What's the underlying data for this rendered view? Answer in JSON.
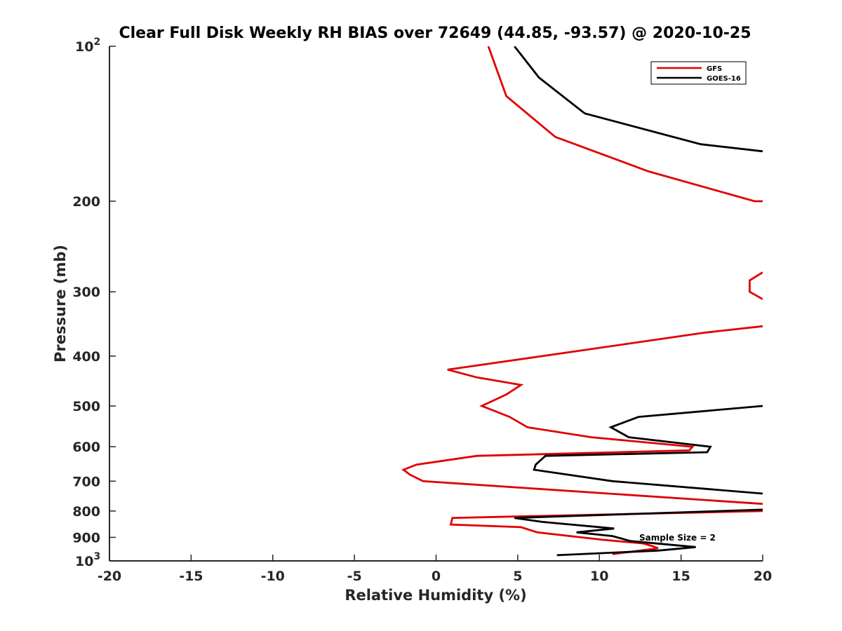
{
  "chart_data": {
    "type": "line",
    "title": "Clear Full Disk Weekly RH BIAS over 72649 (44.85, -93.57) @ 2020-10-25",
    "xlabel": "Relative Humidity (%)",
    "ylabel": "Pressure (mb)",
    "xlim": [
      -20,
      20
    ],
    "ylim": [
      100,
      1000
    ],
    "y_scale": "log",
    "y_reversed": true,
    "grid": false,
    "legend_position": "top-right",
    "annotation": "Sample Size = 2",
    "x_ticks": [
      "-20",
      "-15",
      "-10",
      "-5",
      "0",
      "5",
      "10",
      "15",
      "20"
    ],
    "y_ticks": [
      {
        "value": 100,
        "base": "10",
        "exp": "2"
      },
      {
        "value": 200,
        "base": "200",
        "exp": ""
      },
      {
        "value": 300,
        "base": "300",
        "exp": ""
      },
      {
        "value": 400,
        "base": "400",
        "exp": ""
      },
      {
        "value": 500,
        "base": "500",
        "exp": ""
      },
      {
        "value": 600,
        "base": "600",
        "exp": ""
      },
      {
        "value": 700,
        "base": "700",
        "exp": ""
      },
      {
        "value": 800,
        "base": "800",
        "exp": ""
      },
      {
        "value": 900,
        "base": "900",
        "exp": ""
      },
      {
        "value": 1000,
        "base": "10",
        "exp": "3"
      }
    ],
    "series": [
      {
        "name": "GFS",
        "color": "#e00000",
        "segments": [
          [
            [
              3.2,
              100
            ],
            [
              4.3,
              125
            ],
            [
              7.3,
              150
            ],
            [
              13,
              175
            ],
            [
              19.5,
              200
            ],
            [
              20,
              200
            ]
          ],
          [
            [
              20,
              275
            ],
            [
              19.2,
              285
            ],
            [
              19.2,
              300
            ],
            [
              20,
              310
            ]
          ],
          [
            [
              20,
              350
            ],
            [
              16.5,
              360
            ],
            [
              6.5,
              400
            ],
            [
              0.7,
              425
            ],
            [
              2.5,
              440
            ],
            [
              5.2,
              455
            ],
            [
              4.3,
              475
            ],
            [
              2.8,
              500
            ],
            [
              4.5,
              525
            ],
            [
              5.6,
              550
            ],
            [
              9.5,
              575
            ],
            [
              15.7,
              600
            ],
            [
              15.5,
              610
            ],
            [
              2.5,
              625
            ],
            [
              -1.2,
              650
            ],
            [
              -2,
              665
            ],
            [
              -1.6,
              680
            ],
            [
              -0.8,
              700
            ],
            [
              20,
              775
            ]
          ],
          [
            [
              20,
              800
            ],
            [
              1,
              825
            ],
            [
              0.9,
              850
            ],
            [
              5.2,
              860
            ],
            [
              6.2,
              880
            ],
            [
              10.2,
              910
            ],
            [
              12.7,
              925
            ],
            [
              13.2,
              935
            ],
            [
              13.6,
              945
            ],
            [
              12.5,
              955
            ],
            [
              10.8,
              970
            ]
          ]
        ]
      },
      {
        "name": "GOES-16",
        "color": "#000000",
        "segments": [
          [
            [
              4.8,
              100
            ],
            [
              6.3,
              115
            ],
            [
              9.1,
              135
            ],
            [
              16.2,
              155
            ],
            [
              20,
              160
            ]
          ],
          [
            [
              20,
              500
            ],
            [
              12.4,
              525
            ],
            [
              10.7,
              550
            ],
            [
              11.8,
              575
            ],
            [
              16.8,
              600
            ],
            [
              16.6,
              615
            ],
            [
              6.7,
              625
            ],
            [
              6.1,
              650
            ],
            [
              6,
              665
            ],
            [
              10.8,
              700
            ],
            [
              20,
              740
            ]
          ],
          [
            [
              20,
              795
            ],
            [
              4.8,
              825
            ],
            [
              6.5,
              840
            ],
            [
              10.9,
              865
            ],
            [
              8.6,
              880
            ],
            [
              10.8,
              895
            ],
            [
              11.9,
              915
            ],
            [
              15.9,
              940
            ],
            [
              13.6,
              955
            ],
            [
              7.4,
              975
            ]
          ]
        ]
      }
    ]
  }
}
